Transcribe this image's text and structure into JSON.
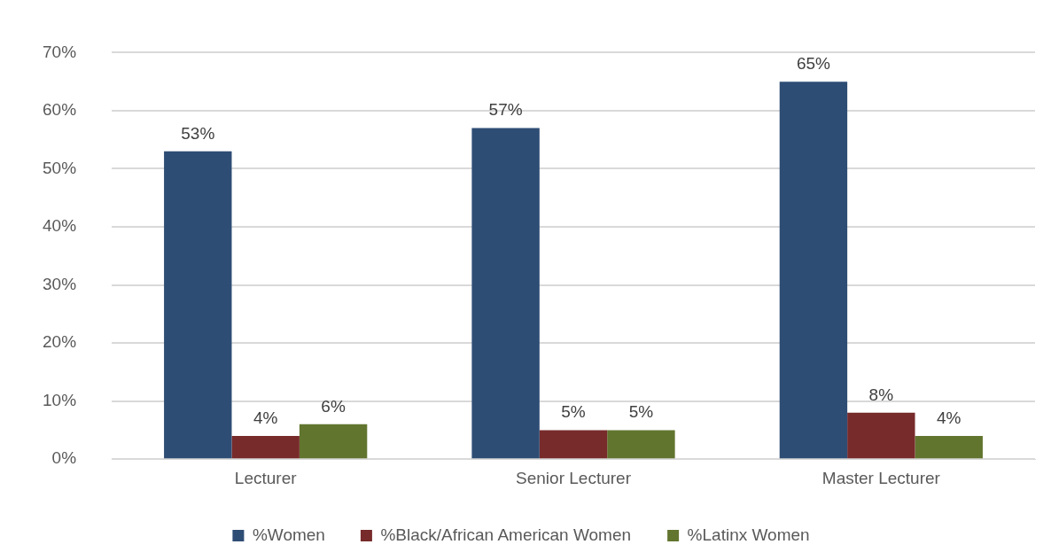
{
  "chart_data": {
    "type": "bar",
    "categories": [
      "Lecturer",
      "Senior Lecturer",
      "Master Lecturer"
    ],
    "series": [
      {
        "name": "%Women",
        "color": "#2e4d74",
        "values": [
          53,
          57,
          65
        ],
        "value_labels": [
          "53%",
          "57%",
          "65%"
        ]
      },
      {
        "name": "%Black/African American Women",
        "color": "#772b2b",
        "values": [
          4,
          5,
          8
        ],
        "value_labels": [
          "4%",
          "5%",
          "8%"
        ]
      },
      {
        "name": "%Latinx Women",
        "color": "#62752f",
        "values": [
          6,
          5,
          4
        ],
        "value_labels": [
          "6%",
          "5%",
          "4%"
        ]
      }
    ],
    "ylim": [
      0,
      70
    ],
    "yticks": [
      {
        "value": 0,
        "label": "0%"
      },
      {
        "value": 10,
        "label": "10%"
      },
      {
        "value": 20,
        "label": "20%"
      },
      {
        "value": 30,
        "label": "30%"
      },
      {
        "value": 40,
        "label": "40%"
      },
      {
        "value": 50,
        "label": "50%"
      },
      {
        "value": 60,
        "label": "60%"
      },
      {
        "value": 70,
        "label": "70%"
      }
    ],
    "grid": "y",
    "legend": "bottom"
  }
}
